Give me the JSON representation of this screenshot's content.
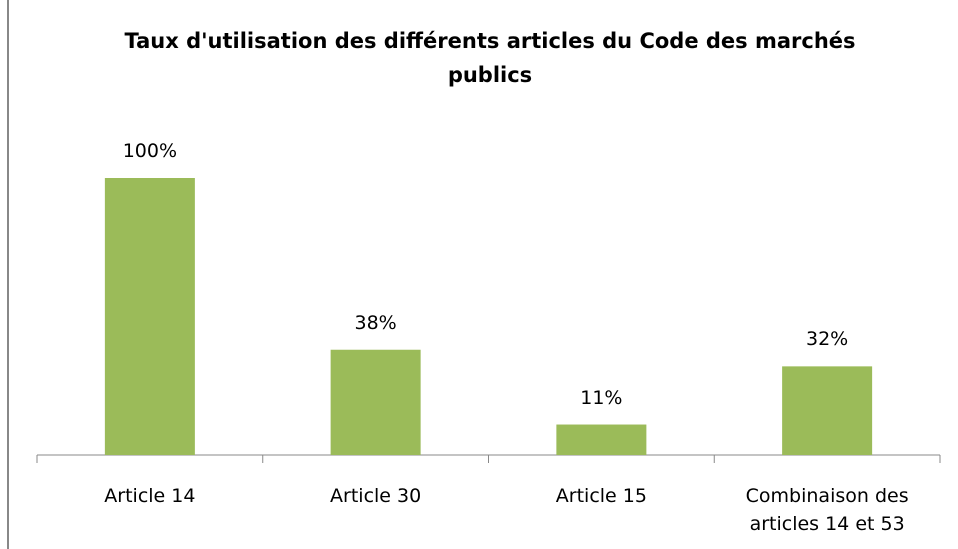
{
  "chart_data": {
    "type": "bar",
    "title": "Taux d'utilisation des différents articles du Code des marchés publics",
    "categories": [
      "Article 14",
      "Article 30",
      "Article 15",
      "Combinaison des articles 14 et 53"
    ],
    "values": [
      100,
      38,
      11,
      32
    ],
    "value_labels": [
      "100%",
      "38%",
      "11%",
      "32%"
    ],
    "color": "#9bbb59"
  }
}
